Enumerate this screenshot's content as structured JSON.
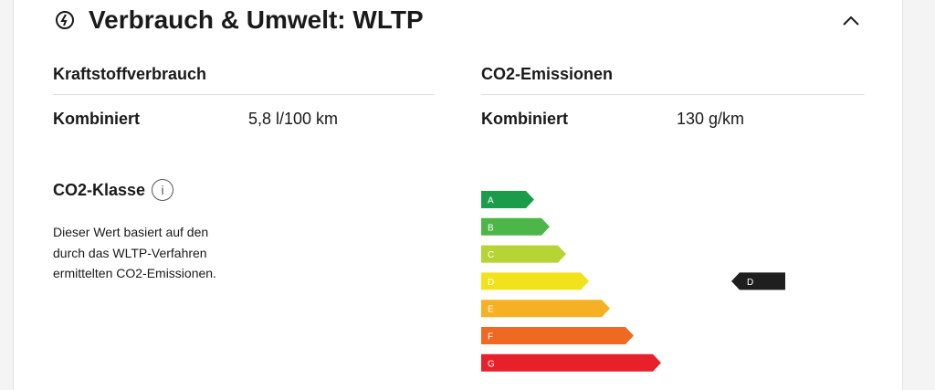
{
  "header": {
    "title": "Verbrauch & Umwelt: WLTP"
  },
  "fuel": {
    "heading": "Kraftstoffverbrauch",
    "label": "Kombiniert",
    "value": "5,8 l/100 km"
  },
  "emissions": {
    "heading": "CO2-Emissionen",
    "label": "Kombiniert",
    "value": "130 g/km"
  },
  "co2_class": {
    "heading": "CO2-Klasse",
    "info": "i",
    "description": [
      "Dieser Wert basiert auf den",
      "durch das WLTP-Verfahren",
      "ermittelten CO2-Emissionen."
    ],
    "scale": [
      "A",
      "B",
      "C",
      "D",
      "E",
      "F",
      "G"
    ],
    "rating": "D"
  }
}
